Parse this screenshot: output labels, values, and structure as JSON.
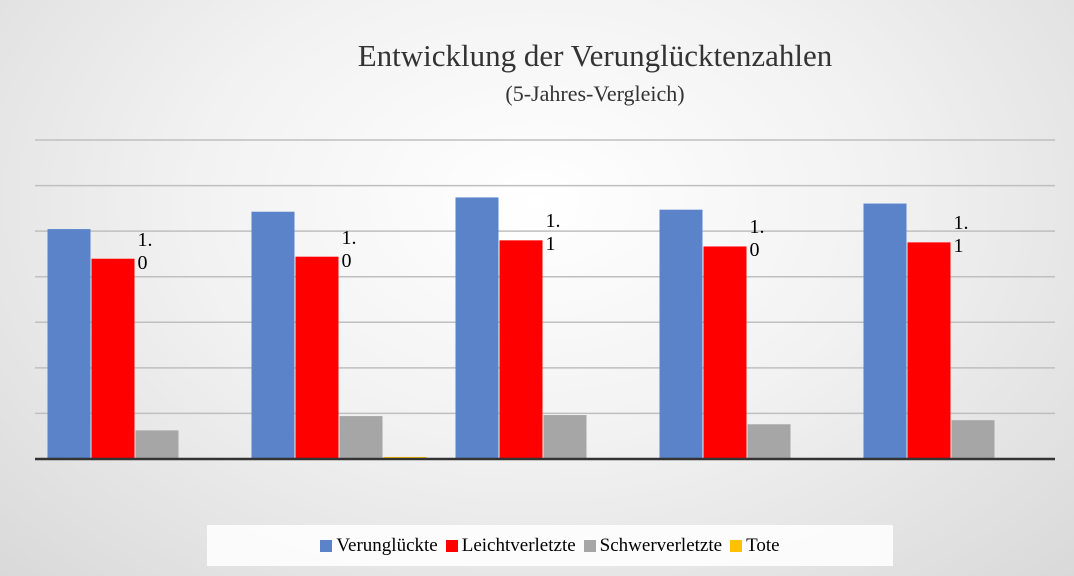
{
  "chart_data": {
    "type": "bar",
    "title": "Entwicklung der Verunglücktenzahlen",
    "subtitle": "(5-Jahres-Vergleich)",
    "categories": [
      null,
      null,
      null,
      null,
      null
    ],
    "series": [
      {
        "name": "Verunglückte",
        "color": "#5b83c9",
        "values": [
          1.125,
          1.21,
          1.28,
          1.22,
          1.25
        ]
      },
      {
        "name": "Leichtverletzte",
        "color": "#ff0000",
        "values": [
          0.98,
          0.99,
          1.07,
          1.04,
          1.06
        ],
        "value_labels": [
          "1.0",
          "1.0",
          "1.1",
          "1.0",
          "1.1"
        ]
      },
      {
        "name": "Schwerverletzte",
        "color": "#a6a6a6",
        "values": [
          0.14,
          0.21,
          0.215,
          0.17,
          0.19
        ]
      },
      {
        "name": "Tote",
        "color": "#ffc000",
        "values": [
          0,
          0.01,
          0,
          0,
          0
        ]
      }
    ],
    "ylim": [
      0,
      1.561
    ],
    "yticks": [
      0,
      0.223,
      0.446,
      0.669,
      0.892,
      1.115,
      1.338,
      1.561
    ],
    "grid": true,
    "legend": "bottom"
  }
}
